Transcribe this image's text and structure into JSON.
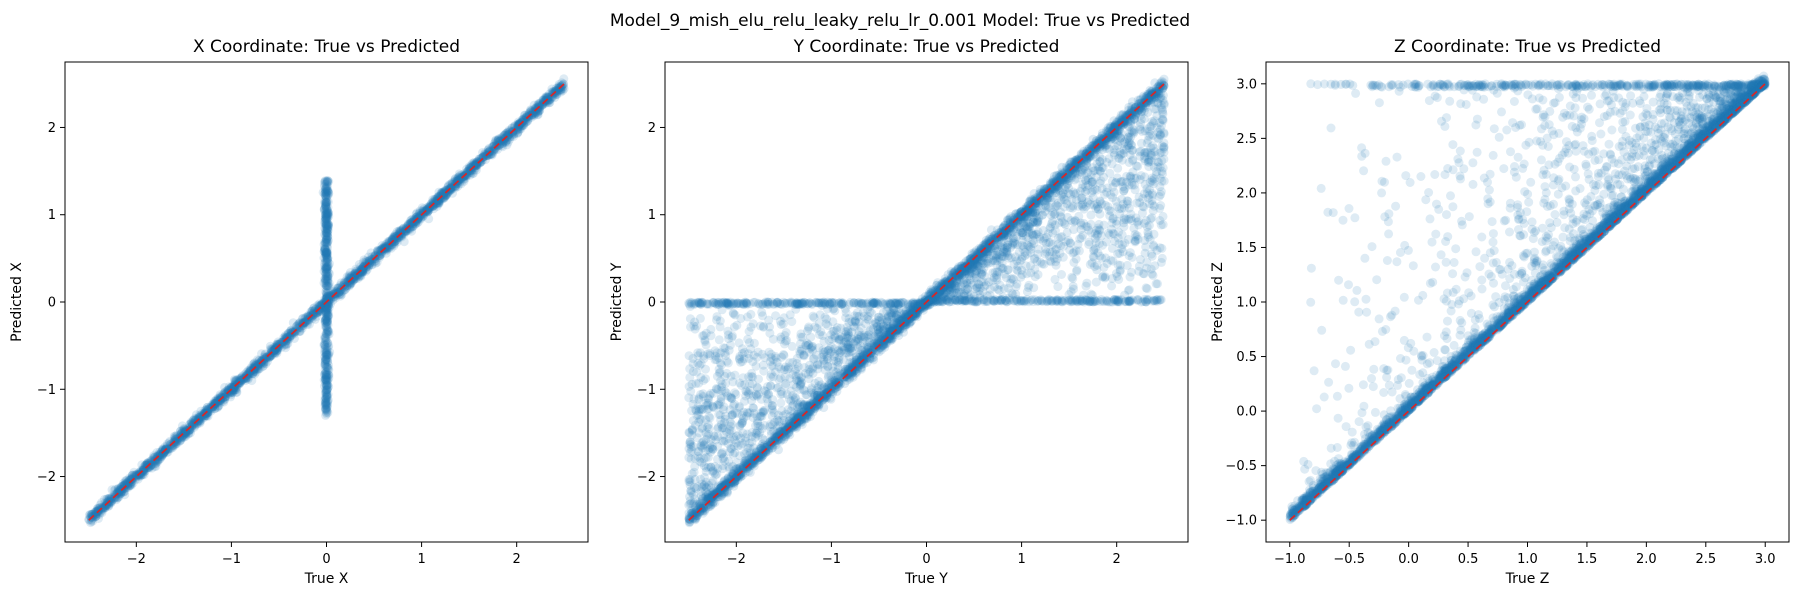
{
  "figure": {
    "suptitle": "Model_9_mish_elu_relu_leaky_relu_lr_0.001 Model: True vs Predicted",
    "point_color": "#1f77b4",
    "reference_line_color": "#d62728"
  },
  "chart_data": [
    {
      "type": "scatter",
      "title": "X Coordinate: True vs Predicted",
      "xlabel": "True X",
      "ylabel": "Predicted X",
      "xlim": [
        -2.75,
        2.75
      ],
      "ylim": [
        -2.75,
        2.75
      ],
      "xticks": [
        -2,
        -1,
        0,
        1,
        2
      ],
      "yticks": [
        -2,
        -1,
        0,
        1,
        2
      ],
      "xtick_labels": [
        "−2",
        "−1",
        "0",
        "1",
        "2"
      ],
      "ytick_labels": [
        "−2",
        "−1",
        "0",
        "1",
        "2"
      ],
      "reference_line": {
        "x": [
          -2.5,
          2.5
        ],
        "y": [
          -2.5,
          2.5
        ],
        "style": "dashed"
      },
      "point_alpha": 0.15,
      "grid": false,
      "legend": "none",
      "pattern": "points tightly along y = x from -2.5 to 2.5, plus a vertical spread at true x = 0 with predicted values from about -1.4 to 1.5"
    },
    {
      "type": "scatter",
      "title": "Y Coordinate: True vs Predicted",
      "xlabel": "True Y",
      "ylabel": "Predicted Y",
      "xlim": [
        -2.75,
        2.75
      ],
      "ylim": [
        -2.75,
        2.75
      ],
      "xticks": [
        -2,
        -1,
        0,
        1,
        2
      ],
      "yticks": [
        -2,
        -1,
        0,
        1,
        2
      ],
      "xtick_labels": [
        "−2",
        "−1",
        "0",
        "1",
        "2"
      ],
      "ytick_labels": [
        "−2",
        "−1",
        "0",
        "1",
        "2"
      ],
      "reference_line": {
        "x": [
          -2.5,
          2.5
        ],
        "y": [
          -2.5,
          2.5
        ],
        "style": "dashed"
      },
      "point_alpha": 0.15,
      "grid": false,
      "legend": "none",
      "pattern": "dense points along y = x; for true y < 0 predictions scatter between the diagonal and 0, for true y > 0 predictions scatter between 0 and the diagonal"
    },
    {
      "type": "scatter",
      "title": "Z Coordinate: True vs Predicted",
      "xlabel": "True Z",
      "ylabel": "Predicted Z",
      "xlim": [
        -1.2,
        3.2
      ],
      "ylim": [
        -1.2,
        3.2
      ],
      "xticks": [
        -1.0,
        -0.5,
        0.0,
        0.5,
        1.0,
        1.5,
        2.0,
        2.5,
        3.0
      ],
      "yticks": [
        -1.0,
        -0.5,
        0.0,
        0.5,
        1.0,
        1.5,
        2.0,
        2.5,
        3.0
      ],
      "xtick_labels": [
        "−1.0",
        "−0.5",
        "0.0",
        "0.5",
        "1.0",
        "1.5",
        "2.0",
        "2.5",
        "3.0"
      ],
      "ytick_labels": [
        "−1.0",
        "−0.5",
        "0.0",
        "0.5",
        "1.0",
        "1.5",
        "2.0",
        "2.5",
        "3.0"
      ],
      "reference_line": {
        "x": [
          -1.0,
          3.0
        ],
        "y": [
          -1.0,
          3.0
        ],
        "style": "dashed"
      },
      "point_alpha": 0.15,
      "grid": false,
      "legend": "none",
      "pattern": "dense band along y = x from -1 to 3 with a triangular cloud of over-predictions above the diagonal, capped at predicted 3.0"
    }
  ]
}
